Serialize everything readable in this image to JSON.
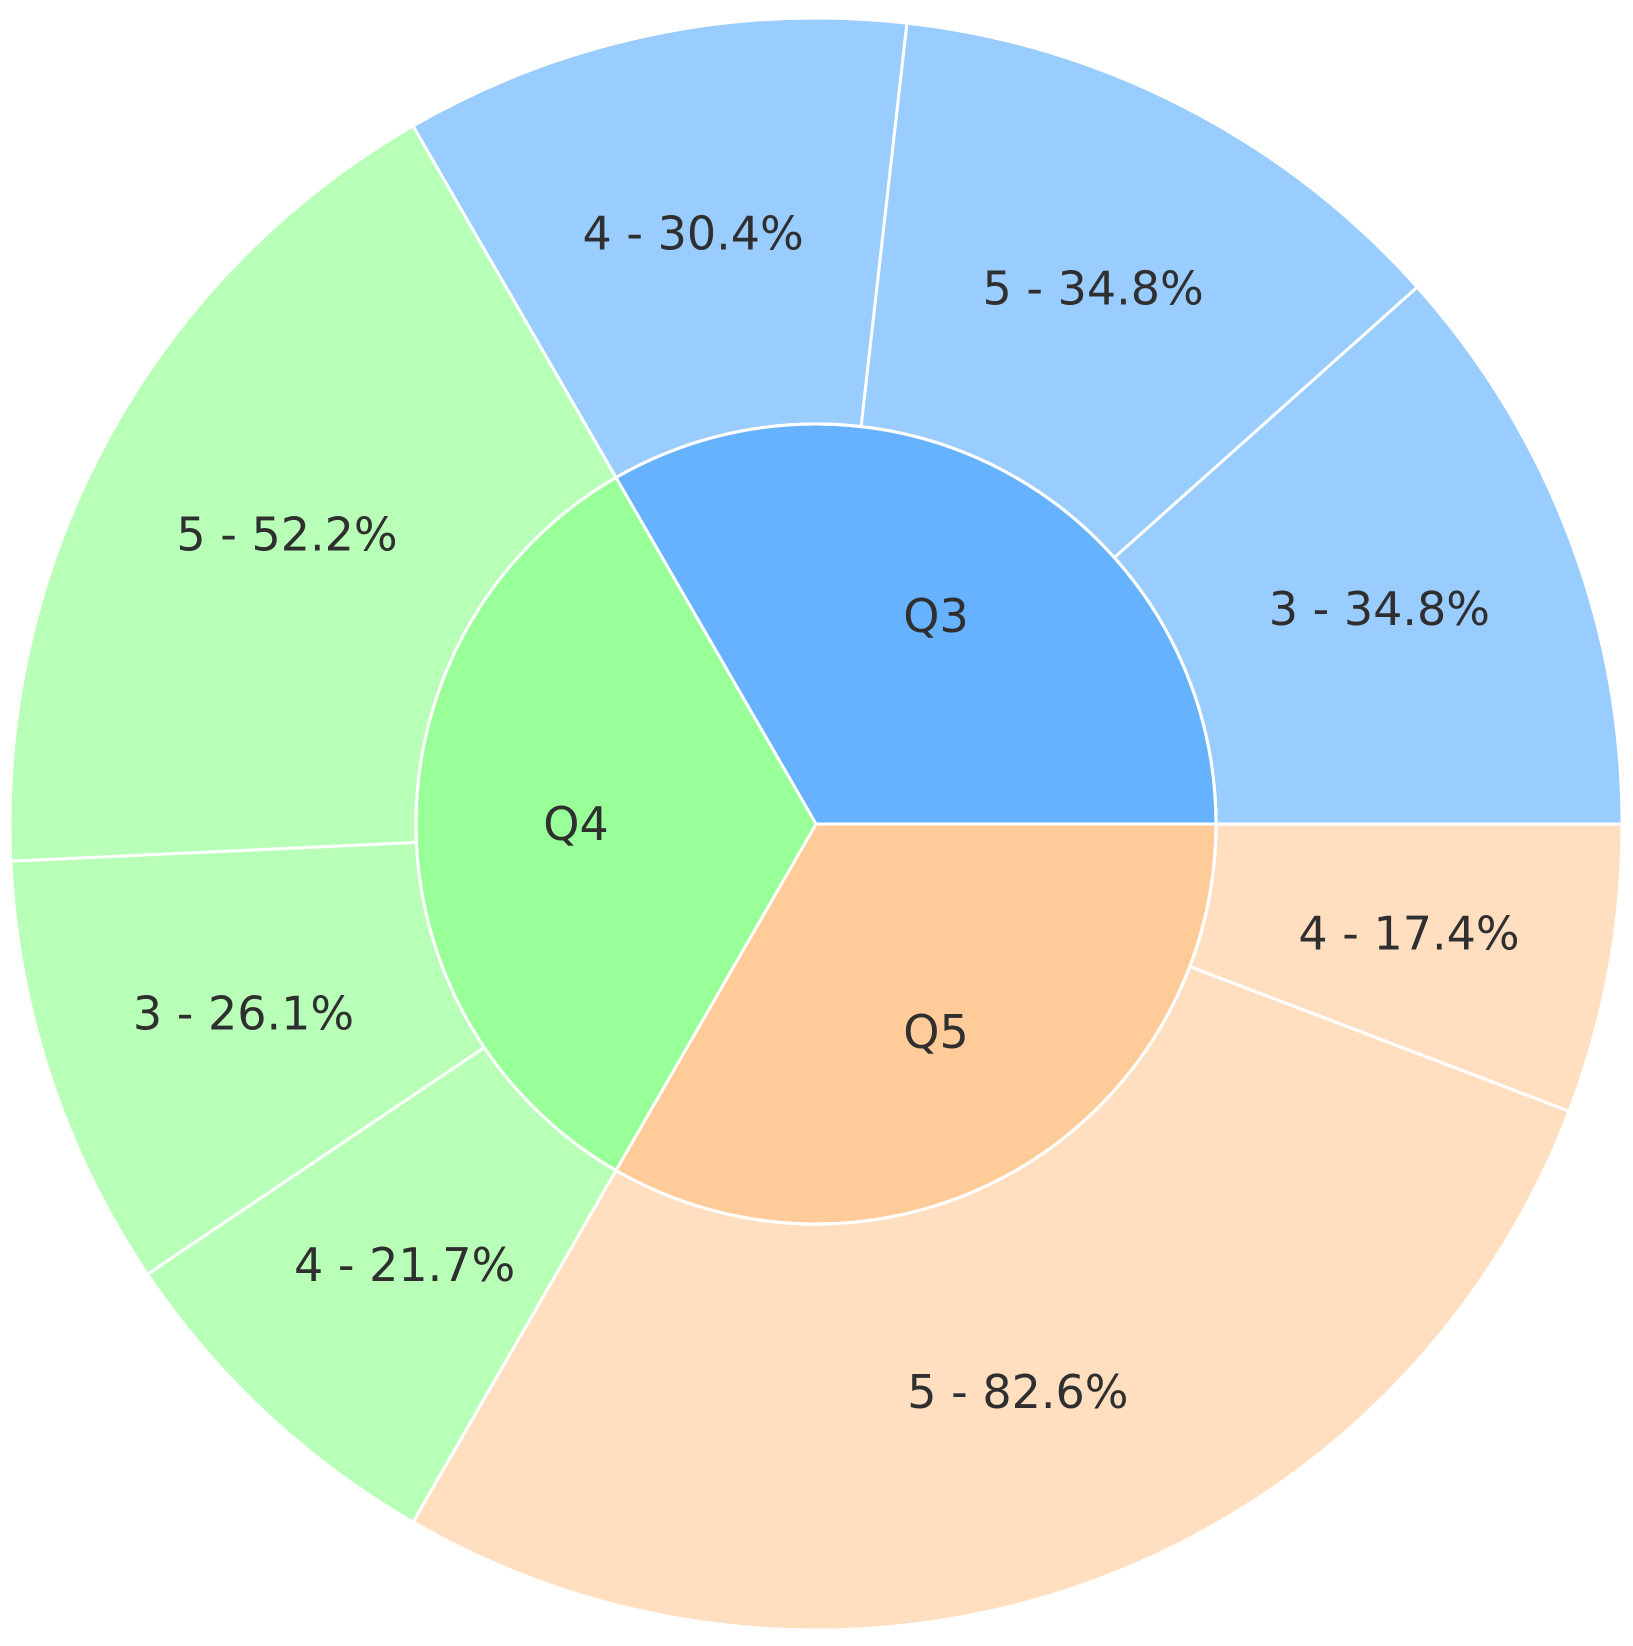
{
  "chart_data": {
    "type": "sunburst",
    "title": "",
    "colors": {
      "Q3": {
        "inner": "#66b2ff",
        "outer": "#99ccff"
      },
      "Q4": {
        "inner": "#99ff99",
        "outer": "#b8ffb8"
      },
      "Q5": {
        "inner": "#ffcc99",
        "outer": "#ffdfc0"
      },
      "separator": "#ffffff"
    },
    "groups": [
      {
        "name": "Q3",
        "label": "Q3",
        "share": 0.3333,
        "children": [
          {
            "name": "4",
            "percent": 30.4,
            "label": "4 - 30.4%"
          },
          {
            "name": "5",
            "percent": 34.8,
            "label": "5 - 34.8%"
          },
          {
            "name": "3",
            "percent": 34.8,
            "label": "3 - 34.8%"
          }
        ]
      },
      {
        "name": "Q5",
        "label": "Q5",
        "share": 0.3333,
        "children": [
          {
            "name": "4",
            "percent": 17.4,
            "label": "4 - 17.4%"
          },
          {
            "name": "5",
            "percent": 82.6,
            "label": "5 - 82.6%"
          }
        ]
      },
      {
        "name": "Q4",
        "label": "Q4",
        "share": 0.3333,
        "children": [
          {
            "name": "4",
            "percent": 21.7,
            "label": "4 - 21.7%"
          },
          {
            "name": "3",
            "percent": 26.1,
            "label": "3 - 26.1%"
          },
          {
            "name": "5",
            "percent": 52.2,
            "label": "5 - 52.2%"
          }
        ]
      }
    ]
  }
}
